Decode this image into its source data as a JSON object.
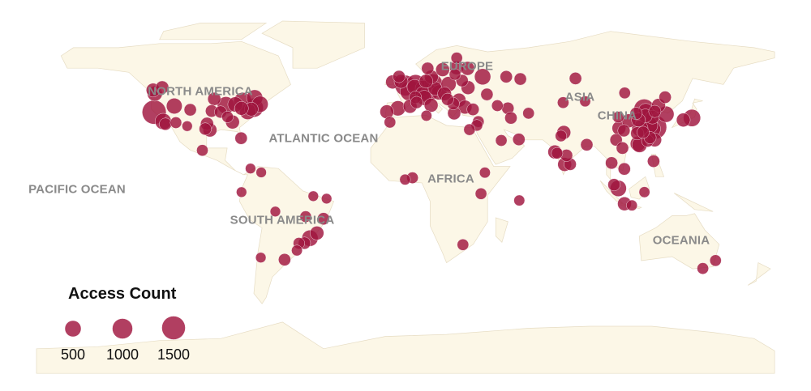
{
  "map": {
    "projection": "equirectangular",
    "land_color": "#fcf7e7",
    "bubble_color": "#a0153e",
    "region_labels": {
      "north_america": "NORTH AMERICA",
      "europe": "EUROPE",
      "asia": "ASIA",
      "china": "CHINA",
      "atlantic": "ATLANTIC OCEAN",
      "pacific": "PACIFIC OCEAN",
      "africa": "AFRICA",
      "south_america": "SOUTH AMERICA",
      "oceania": "OCEANIA"
    }
  },
  "legend": {
    "title": "Access Count",
    "values": [
      "500",
      "1000",
      "1500"
    ]
  },
  "chart_data": {
    "type": "bubble-map",
    "size_variable": "Access Count",
    "legend_sizes": [
      500,
      1000,
      1500
    ],
    "points": [
      {
        "lon": -123.1,
        "lat": 49.3,
        "count": 300
      },
      {
        "lon": -122.3,
        "lat": 47.6,
        "count": 400
      },
      {
        "lon": -118.7,
        "lat": 50.6,
        "count": 250
      },
      {
        "lon": -122.6,
        "lat": 38.5,
        "count": 1500
      },
      {
        "lon": -118.2,
        "lat": 34.0,
        "count": 500
      },
      {
        "lon": -117.1,
        "lat": 32.7,
        "count": 200
      },
      {
        "lon": -112.8,
        "lat": 41.5,
        "count": 450
      },
      {
        "lon": -105.0,
        "lat": 39.7,
        "count": 200
      },
      {
        "lon": -112.0,
        "lat": 33.4,
        "count": 150
      },
      {
        "lon": -93.3,
        "lat": 45.0,
        "count": 250
      },
      {
        "lon": -87.6,
        "lat": 41.9,
        "count": 600
      },
      {
        "lon": -83.0,
        "lat": 42.3,
        "count": 400
      },
      {
        "lon": -79.4,
        "lat": 43.7,
        "count": 700
      },
      {
        "lon": -73.6,
        "lat": 45.5,
        "count": 500
      },
      {
        "lon": -71.0,
        "lat": 42.4,
        "count": 500
      },
      {
        "lon": -74.0,
        "lat": 40.7,
        "count": 800
      },
      {
        "lon": -75.2,
        "lat": 40.0,
        "count": 300
      },
      {
        "lon": -77.0,
        "lat": 38.9,
        "count": 500
      },
      {
        "lon": -80.0,
        "lat": 40.4,
        "count": 300
      },
      {
        "lon": -84.4,
        "lat": 33.7,
        "count": 300
      },
      {
        "lon": -86.8,
        "lat": 36.2,
        "count": 150
      },
      {
        "lon": -95.4,
        "lat": 29.8,
        "count": 300
      },
      {
        "lon": -96.8,
        "lat": 32.8,
        "count": 250
      },
      {
        "lon": -97.7,
        "lat": 30.3,
        "count": 200
      },
      {
        "lon": -80.2,
        "lat": 25.8,
        "count": 200
      },
      {
        "lon": -94.6,
        "lat": 39.1,
        "count": 200
      },
      {
        "lon": -90.2,
        "lat": 38.6,
        "count": 200
      },
      {
        "lon": -99.1,
        "lat": 19.9,
        "count": 150
      },
      {
        "lon": -106.5,
        "lat": 31.7,
        "count": 100
      },
      {
        "lon": -75.6,
        "lat": 11.0,
        "count": 100
      },
      {
        "lon": -70.4,
        "lat": 9.1,
        "count": 100
      },
      {
        "lon": -80.0,
        "lat": -0.5,
        "count": 100
      },
      {
        "lon": -63.5,
        "lat": -10.0,
        "count": 100
      },
      {
        "lon": -38.5,
        "lat": -3.7,
        "count": 100
      },
      {
        "lon": -45.0,
        "lat": -2.5,
        "count": 100
      },
      {
        "lon": -48.7,
        "lat": -12.5,
        "count": 150
      },
      {
        "lon": -46.6,
        "lat": -23.0,
        "count": 500
      },
      {
        "lon": -43.2,
        "lat": -20.5,
        "count": 300
      },
      {
        "lon": -40.0,
        "lat": -13.5,
        "count": 200
      },
      {
        "lon": -52.0,
        "lat": -25.5,
        "count": 150
      },
      {
        "lon": -49.3,
        "lat": -25.4,
        "count": 200
      },
      {
        "lon": -59.0,
        "lat": -33.5,
        "count": 200
      },
      {
        "lon": -70.6,
        "lat": -32.5,
        "count": 100
      },
      {
        "lon": -53.0,
        "lat": -29.0,
        "count": 120
      },
      {
        "lon": -0.1,
        "lat": 51.5,
        "count": 1000
      },
      {
        "lon": 2.3,
        "lat": 48.9,
        "count": 1000
      },
      {
        "lon": 4.9,
        "lat": 52.4,
        "count": 700
      },
      {
        "lon": 4.4,
        "lat": 50.8,
        "count": 400
      },
      {
        "lon": 13.4,
        "lat": 52.5,
        "count": 800
      },
      {
        "lon": 11.6,
        "lat": 48.1,
        "count": 600
      },
      {
        "lon": 8.7,
        "lat": 50.1,
        "count": 500
      },
      {
        "lon": 8.5,
        "lat": 47.4,
        "count": 400
      },
      {
        "lon": 16.4,
        "lat": 48.2,
        "count": 400
      },
      {
        "lon": 14.4,
        "lat": 50.1,
        "count": 300
      },
      {
        "lon": 21.0,
        "lat": 52.2,
        "count": 400
      },
      {
        "lon": 12.6,
        "lat": 55.7,
        "count": 300
      },
      {
        "lon": 18.1,
        "lat": 59.3,
        "count": 300
      },
      {
        "lon": 10.8,
        "lat": 59.9,
        "count": 200
      },
      {
        "lon": 24.9,
        "lat": 60.2,
        "count": 300
      },
      {
        "lon": 30.3,
        "lat": 59.9,
        "count": 300
      },
      {
        "lon": 37.6,
        "lat": 55.8,
        "count": 500
      },
      {
        "lon": 30.5,
        "lat": 50.5,
        "count": 300
      },
      {
        "lon": 27.6,
        "lat": 53.9,
        "count": 200
      },
      {
        "lon": 24.1,
        "lat": 56.9,
        "count": 150
      },
      {
        "lon": 19.0,
        "lat": 47.5,
        "count": 300
      },
      {
        "lon": 26.1,
        "lat": 44.4,
        "count": 300
      },
      {
        "lon": 23.3,
        "lat": 42.7,
        "count": 200
      },
      {
        "lon": 20.5,
        "lat": 44.8,
        "count": 200
      },
      {
        "lon": 12.5,
        "lat": 41.9,
        "count": 300
      },
      {
        "lon": 9.2,
        "lat": 45.5,
        "count": 400
      },
      {
        "lon": 2.2,
        "lat": 41.4,
        "count": 300
      },
      {
        "lon": -3.7,
        "lat": 40.4,
        "count": 400
      },
      {
        "lon": -9.1,
        "lat": 38.7,
        "count": 300
      },
      {
        "lon": 23.7,
        "lat": 38.0,
        "count": 250
      },
      {
        "lon": 29.0,
        "lat": 41.0,
        "count": 300
      },
      {
        "lon": 32.9,
        "lat": 39.9,
        "count": 200
      },
      {
        "lon": -6.3,
        "lat": 53.3,
        "count": 300
      },
      {
        "lon": -3.2,
        "lat": 55.9,
        "count": 200
      },
      {
        "lon": -2.2,
        "lat": 53.5,
        "count": 300
      },
      {
        "lon": 10.0,
        "lat": 53.6,
        "count": 300
      },
      {
        "lon": 4.8,
        "lat": 45.8,
        "count": 200
      },
      {
        "lon": 5.4,
        "lat": 43.3,
        "count": 200
      },
      {
        "lon": 49.1,
        "lat": 55.8,
        "count": 200
      },
      {
        "lon": 56.0,
        "lat": 54.7,
        "count": 200
      },
      {
        "lon": 25.0,
        "lat": 65.0,
        "count": 150
      },
      {
        "lon": 39.7,
        "lat": 47.2,
        "count": 200
      },
      {
        "lon": 44.8,
        "lat": 41.7,
        "count": 150
      },
      {
        "lon": 49.9,
        "lat": 40.4,
        "count": 200
      },
      {
        "lon": 51.4,
        "lat": 35.7,
        "count": 200
      },
      {
        "lon": 55.3,
        "lat": 25.2,
        "count": 200
      },
      {
        "lon": 35.5,
        "lat": 33.9,
        "count": 150
      },
      {
        "lon": 34.8,
        "lat": 32.1,
        "count": 150
      },
      {
        "lon": 31.2,
        "lat": 30.0,
        "count": 150
      },
      {
        "lon": 46.7,
        "lat": 24.7,
        "count": 150
      },
      {
        "lon": -7.6,
        "lat": 33.6,
        "count": 150
      },
      {
        "lon": 10.2,
        "lat": 36.8,
        "count": 120
      },
      {
        "lon": 82.9,
        "lat": 55.0,
        "count": 200
      },
      {
        "lon": 60.0,
        "lat": 38.0,
        "count": 150
      },
      {
        "lon": 76.9,
        "lat": 43.2,
        "count": 150
      },
      {
        "lon": 77.2,
        "lat": 28.6,
        "count": 300
      },
      {
        "lon": 72.8,
        "lat": 19.1,
        "count": 300
      },
      {
        "lon": 77.6,
        "lat": 13.0,
        "count": 300
      },
      {
        "lon": 80.3,
        "lat": 13.1,
        "count": 200
      },
      {
        "lon": 78.5,
        "lat": 17.4,
        "count": 200
      },
      {
        "lon": 88.4,
        "lat": 22.6,
        "count": 200
      },
      {
        "lon": 73.9,
        "lat": 18.5,
        "count": 150
      },
      {
        "lon": 75.8,
        "lat": 26.9,
        "count": 150
      },
      {
        "lon": 116.4,
        "lat": 39.9,
        "count": 1000
      },
      {
        "lon": 121.5,
        "lat": 31.2,
        "count": 1500
      },
      {
        "lon": 120.2,
        "lat": 30.3,
        "count": 600
      },
      {
        "lon": 118.8,
        "lat": 32.1,
        "count": 600
      },
      {
        "lon": 113.3,
        "lat": 23.1,
        "count": 400
      },
      {
        "lon": 114.1,
        "lat": 22.5,
        "count": 400
      },
      {
        "lon": 114.3,
        "lat": 30.6,
        "count": 500
      },
      {
        "lon": 104.1,
        "lat": 30.7,
        "count": 300
      },
      {
        "lon": 106.5,
        "lat": 29.5,
        "count": 200
      },
      {
        "lon": 108.9,
        "lat": 34.3,
        "count": 300
      },
      {
        "lon": 126.6,
        "lat": 45.8,
        "count": 200
      },
      {
        "lon": 123.4,
        "lat": 41.8,
        "count": 300
      },
      {
        "lon": 121.6,
        "lat": 38.9,
        "count": 200
      },
      {
        "lon": 120.4,
        "lat": 36.1,
        "count": 300
      },
      {
        "lon": 117.0,
        "lat": 36.7,
        "count": 300
      },
      {
        "lon": 113.6,
        "lat": 34.7,
        "count": 300
      },
      {
        "lon": 113.0,
        "lat": 28.2,
        "count": 250
      },
      {
        "lon": 102.7,
        "lat": 25.0,
        "count": 200
      },
      {
        "lon": 117.2,
        "lat": 39.1,
        "count": 400
      },
      {
        "lon": 121.5,
        "lat": 25.0,
        "count": 300
      },
      {
        "lon": 118.1,
        "lat": 24.5,
        "count": 200
      },
      {
        "lon": 119.3,
        "lat": 26.1,
        "count": 200
      },
      {
        "lon": 115.9,
        "lat": 28.7,
        "count": 200
      },
      {
        "lon": 112.5,
        "lat": 37.9,
        "count": 200
      },
      {
        "lon": 127.0,
        "lat": 37.5,
        "count": 500
      },
      {
        "lon": 139.7,
        "lat": 35.7,
        "count": 600
      },
      {
        "lon": 135.5,
        "lat": 34.7,
        "count": 300
      },
      {
        "lon": 106.9,
        "lat": 47.9,
        "count": 150
      },
      {
        "lon": 103.8,
        "lat": 36.1,
        "count": 150
      },
      {
        "lon": 87.6,
        "lat": 43.8,
        "count": 120
      },
      {
        "lon": 105.8,
        "lat": 21.0,
        "count": 200
      },
      {
        "lon": 100.5,
        "lat": 13.7,
        "count": 200
      },
      {
        "lon": 106.7,
        "lat": 10.8,
        "count": 200
      },
      {
        "lon": 101.7,
        "lat": 3.1,
        "count": 200
      },
      {
        "lon": 103.8,
        "lat": 1.3,
        "count": 500
      },
      {
        "lon": 106.8,
        "lat": -6.2,
        "count": 300
      },
      {
        "lon": 121.0,
        "lat": 14.6,
        "count": 200
      },
      {
        "lon": 116.5,
        "lat": -0.5,
        "count": 120
      },
      {
        "lon": 110.4,
        "lat": -7.0,
        "count": 120
      },
      {
        "lon": 3.4,
        "lat": 6.5,
        "count": 150
      },
      {
        "lon": -0.2,
        "lat": 5.6,
        "count": 120
      },
      {
        "lon": 36.8,
        "lat": -1.3,
        "count": 150
      },
      {
        "lon": 28.0,
        "lat": -26.2,
        "count": 150
      },
      {
        "lon": 55.5,
        "lat": -4.6,
        "count": 120
      },
      {
        "lon": 38.7,
        "lat": 9.0,
        "count": 120
      },
      {
        "lon": 151.2,
        "lat": -33.9,
        "count": 150
      },
      {
        "lon": 145.0,
        "lat": -37.8,
        "count": 150
      }
    ]
  }
}
